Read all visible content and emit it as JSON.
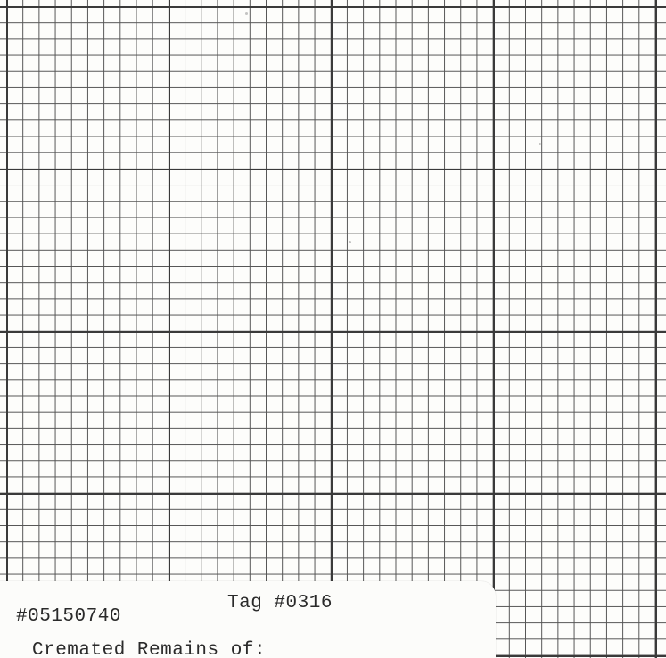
{
  "label": {
    "record_number": "#05150740",
    "tag_number": "Tag #0316",
    "heading": "Cremated Remains of:"
  },
  "colors": {
    "paper": "#fdfdfb",
    "major_grid": "#3a3a3a",
    "minor_grid": "#555555",
    "ink": "#2a2a2a"
  }
}
